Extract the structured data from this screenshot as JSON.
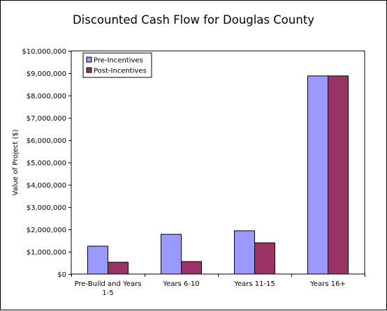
{
  "chart_data": {
    "type": "bar",
    "title": "Discounted Cash Flow for Douglas County",
    "xlabel": "",
    "ylabel": "Value of Project ($)",
    "ylim": [
      0,
      10000000
    ],
    "yticks": [
      0,
      1000000,
      2000000,
      3000000,
      4000000,
      5000000,
      6000000,
      7000000,
      8000000,
      9000000,
      10000000
    ],
    "ytick_labels": [
      "$0",
      "$1,000,000",
      "$2,000,000",
      "$3,000,000",
      "$4,000,000",
      "$5,000,000",
      "$6,000,000",
      "$7,000,000",
      "$8,000,000",
      "$9,000,000",
      "$10,000,000"
    ],
    "categories": [
      [
        "Pre-Build and Years",
        "1-5"
      ],
      [
        "Years 6-10"
      ],
      [
        "Years 11-15"
      ],
      [
        "Years 16+"
      ]
    ],
    "series": [
      {
        "name": "Pre-Incentives",
        "color": "#9999ff",
        "values": [
          1250000,
          1780000,
          1940000,
          8880000
        ]
      },
      {
        "name": "Post-Incentives",
        "color": "#993366",
        "values": [
          530000,
          560000,
          1400000,
          8880000
        ]
      }
    ],
    "grid": false,
    "legend_position": "top-left"
  }
}
